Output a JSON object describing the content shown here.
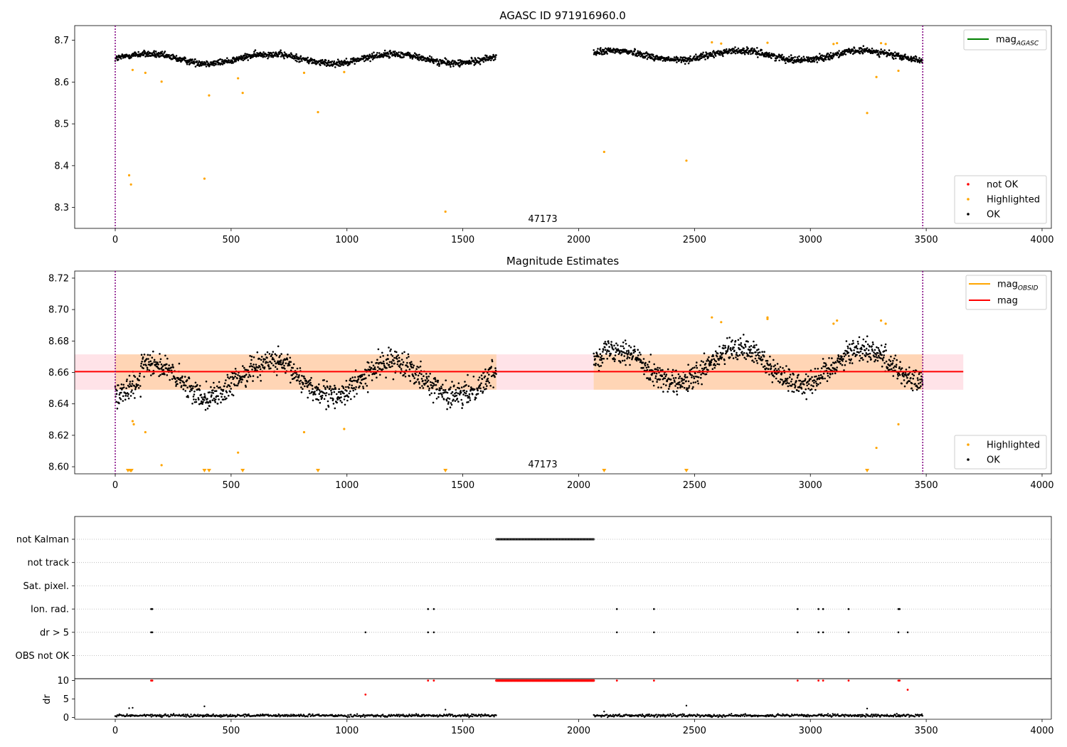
{
  "figure": {
    "suptitle": "AGASC ID 971916960.0"
  },
  "chart_data": [
    {
      "type": "scatter",
      "title": "AGASC ID 971916960.0",
      "annotation": "47173",
      "xlim": [
        -175,
        4040
      ],
      "ylim": [
        8.25,
        8.735
      ],
      "xticks": [
        0,
        500,
        1000,
        1500,
        2000,
        2500,
        3000,
        3500,
        4000
      ],
      "yticks": [
        8.3,
        8.4,
        8.5,
        8.6,
        8.7
      ],
      "legend_lines": [
        {
          "name": "mag_AGASC",
          "label": "mag",
          "sub": "AGASC",
          "color": "#008000"
        }
      ],
      "legend_points": [
        {
          "label": "not OK",
          "color": "#ff0000"
        },
        {
          "label": "Highlighted",
          "color": "#ffa500"
        },
        {
          "label": "OK",
          "color": "#000000"
        }
      ],
      "vlines": [
        0,
        3485
      ],
      "ok_segments": [
        {
          "x0": 0,
          "x1": 1645,
          "base": 8.656
        },
        {
          "x0": 2065,
          "x1": 3485,
          "base": 8.664
        }
      ],
      "highlighted": [
        {
          "x": 60,
          "y": 8.377
        },
        {
          "x": 68,
          "y": 8.355
        },
        {
          "x": 75,
          "y": 8.629
        },
        {
          "x": 130,
          "y": 8.622
        },
        {
          "x": 200,
          "y": 8.601
        },
        {
          "x": 385,
          "y": 8.369
        },
        {
          "x": 405,
          "y": 8.568
        },
        {
          "x": 530,
          "y": 8.609
        },
        {
          "x": 550,
          "y": 8.574
        },
        {
          "x": 815,
          "y": 8.622
        },
        {
          "x": 875,
          "y": 8.528
        },
        {
          "x": 988,
          "y": 8.624
        },
        {
          "x": 1425,
          "y": 8.29
        },
        {
          "x": 2110,
          "y": 8.433
        },
        {
          "x": 2465,
          "y": 8.412
        },
        {
          "x": 2575,
          "y": 8.695
        },
        {
          "x": 2615,
          "y": 8.692
        },
        {
          "x": 2815,
          "y": 8.694
        },
        {
          "x": 3100,
          "y": 8.691
        },
        {
          "x": 3115,
          "y": 8.693
        },
        {
          "x": 3245,
          "y": 8.526
        },
        {
          "x": 3285,
          "y": 8.612
        },
        {
          "x": 3305,
          "y": 8.693
        },
        {
          "x": 3325,
          "y": 8.691
        },
        {
          "x": 3380,
          "y": 8.627
        }
      ]
    },
    {
      "type": "scatter",
      "title": "Magnitude Estimates",
      "annotation": "47173",
      "xlim": [
        -175,
        4040
      ],
      "ylim": [
        8.5955,
        8.7245
      ],
      "xticks": [
        0,
        500,
        1000,
        1500,
        2000,
        2500,
        3000,
        3500,
        4000
      ],
      "yticks": [
        8.6,
        8.62,
        8.64,
        8.66,
        8.68,
        8.7,
        8.72
      ],
      "legend_lines": [
        {
          "name": "mag_OBSID",
          "label": "mag",
          "sub": "OBSID",
          "color": "#ffa500"
        },
        {
          "name": "mag",
          "label": "mag",
          "sub": "",
          "color": "#ff0000"
        }
      ],
      "legend_points": [
        {
          "label": "Highlighted",
          "color": "#ffa500"
        },
        {
          "label": "OK",
          "color": "#000000"
        }
      ],
      "mag_line": 8.6605,
      "mag_band": [
        8.649,
        8.6715
      ],
      "band_x": [
        -175,
        3660
      ],
      "vlines": [
        0,
        3485
      ],
      "ok_segments": [
        {
          "x0": 0,
          "x1": 1645,
          "base": 8.656
        },
        {
          "x0": 2065,
          "x1": 3485,
          "base": 8.664
        }
      ],
      "highlighted": [
        {
          "x": 75,
          "y": 8.629
        },
        {
          "x": 80,
          "y": 8.627
        },
        {
          "x": 130,
          "y": 8.622
        },
        {
          "x": 200,
          "y": 8.601
        },
        {
          "x": 530,
          "y": 8.609
        },
        {
          "x": 815,
          "y": 8.622
        },
        {
          "x": 988,
          "y": 8.624
        },
        {
          "x": 2575,
          "y": 8.695
        },
        {
          "x": 2615,
          "y": 8.692
        },
        {
          "x": 2815,
          "y": 8.694
        },
        {
          "x": 2815,
          "y": 8.695
        },
        {
          "x": 3100,
          "y": 8.691
        },
        {
          "x": 3115,
          "y": 8.693
        },
        {
          "x": 3285,
          "y": 8.612
        },
        {
          "x": 3305,
          "y": 8.693
        },
        {
          "x": 3325,
          "y": 8.691
        },
        {
          "x": 3380,
          "y": 8.627
        }
      ],
      "below_range_markers": [
        55,
        65,
        70,
        385,
        405,
        550,
        875,
        1425,
        2110,
        2465,
        3245
      ]
    },
    {
      "type": "scatter",
      "title": "",
      "xlim": [
        -175,
        4040
      ],
      "xticks": [
        0,
        500,
        1000,
        1500,
        2000,
        2500,
        3000,
        3500,
        4000
      ],
      "flag_rows": [
        "not Kalman",
        "not track",
        "Sat. pixel.",
        "Ion. rad.",
        "dr > 5",
        "OBS not OK"
      ],
      "flags": {
        "not Kalman": {
          "ranges": [
            [
              1645,
              2065
            ]
          ],
          "points": []
        },
        "not track": {
          "ranges": [],
          "points": []
        },
        "Sat. pixel.": {
          "ranges": [],
          "points": []
        },
        "Ion. rad.": {
          "ranges": [],
          "points": [
            155,
            160,
            1350,
            1375,
            2165,
            2325,
            2945,
            3035,
            3055,
            3165,
            3380,
            3385
          ]
        },
        "dr > 5": {
          "ranges": [],
          "points": [
            155,
            160,
            1080,
            1350,
            1375,
            2165,
            2325,
            2945,
            3035,
            3055,
            3165,
            3380,
            3420
          ]
        },
        "OBS not OK": {
          "ranges": [],
          "points": []
        }
      },
      "dr": {
        "ylabel": "dr",
        "ylim": [
          -0.5,
          10.5
        ],
        "yticks": [
          0,
          5,
          10
        ],
        "clip_value": 10,
        "ok_segments": [
          {
            "x0": 0,
            "x1": 1645
          },
          {
            "x0": 2065,
            "x1": 3485
          }
        ],
        "red_range": [
          1645,
          2065
        ],
        "red_points": [
          {
            "x": 155,
            "y": 10
          },
          {
            "x": 160,
            "y": 10
          },
          {
            "x": 1350,
            "y": 10
          },
          {
            "x": 1375,
            "y": 10
          },
          {
            "x": 2165,
            "y": 10
          },
          {
            "x": 2325,
            "y": 10
          },
          {
            "x": 2945,
            "y": 10
          },
          {
            "x": 3035,
            "y": 10
          },
          {
            "x": 3055,
            "y": 10
          },
          {
            "x": 3165,
            "y": 10
          },
          {
            "x": 3380,
            "y": 10
          },
          {
            "x": 3385,
            "y": 10
          },
          {
            "x": 1080,
            "y": 6.2
          },
          {
            "x": 3420,
            "y": 7.5
          }
        ],
        "scattered_black": [
          {
            "x": 60,
            "y": 2.5
          },
          {
            "x": 75,
            "y": 2.6
          },
          {
            "x": 385,
            "y": 3.0
          },
          {
            "x": 1425,
            "y": 2.1
          },
          {
            "x": 2110,
            "y": 1.6
          },
          {
            "x": 2465,
            "y": 3.2
          },
          {
            "x": 3245,
            "y": 2.4
          }
        ]
      }
    }
  ]
}
